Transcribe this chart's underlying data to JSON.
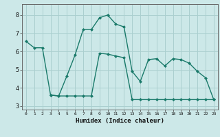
{
  "xlabel": "Humidex (Indice chaleur)",
  "background_color": "#cce8e8",
  "grid_color": "#aacfcf",
  "line_color": "#1a7a6a",
  "xlim": [
    -0.5,
    23.5
  ],
  "ylim": [
    2.8,
    8.6
  ],
  "yticks": [
    3,
    4,
    5,
    6,
    7,
    8
  ],
  "xticks": [
    0,
    1,
    2,
    3,
    4,
    5,
    6,
    7,
    8,
    9,
    10,
    11,
    12,
    13,
    14,
    15,
    16,
    17,
    18,
    19,
    20,
    21,
    22,
    23
  ],
  "line1_x": [
    0,
    1,
    2,
    3,
    4,
    5,
    6,
    7,
    8,
    9,
    10,
    11,
    12,
    13,
    14,
    15,
    16,
    17,
    18,
    19,
    20,
    21,
    22,
    23
  ],
  "line1_y": [
    6.55,
    6.2,
    6.2,
    3.6,
    3.55,
    4.65,
    5.8,
    7.2,
    7.2,
    7.85,
    8.0,
    7.5,
    7.35,
    4.9,
    4.35,
    5.55,
    5.6,
    5.2,
    5.6,
    5.55,
    5.35,
    4.9,
    4.55,
    3.35
  ],
  "line2_x": [
    3,
    4,
    5,
    6,
    7,
    8,
    9,
    10,
    11,
    12,
    13,
    14,
    15,
    16,
    17,
    18,
    19,
    20,
    21,
    22,
    23
  ],
  "line2_y": [
    3.6,
    3.55,
    3.55,
    3.55,
    3.55,
    3.55,
    5.9,
    5.85,
    5.75,
    5.65,
    3.35,
    3.35,
    3.35,
    3.35,
    3.35,
    3.35,
    3.35,
    3.35,
    3.35,
    3.35,
    3.35
  ]
}
